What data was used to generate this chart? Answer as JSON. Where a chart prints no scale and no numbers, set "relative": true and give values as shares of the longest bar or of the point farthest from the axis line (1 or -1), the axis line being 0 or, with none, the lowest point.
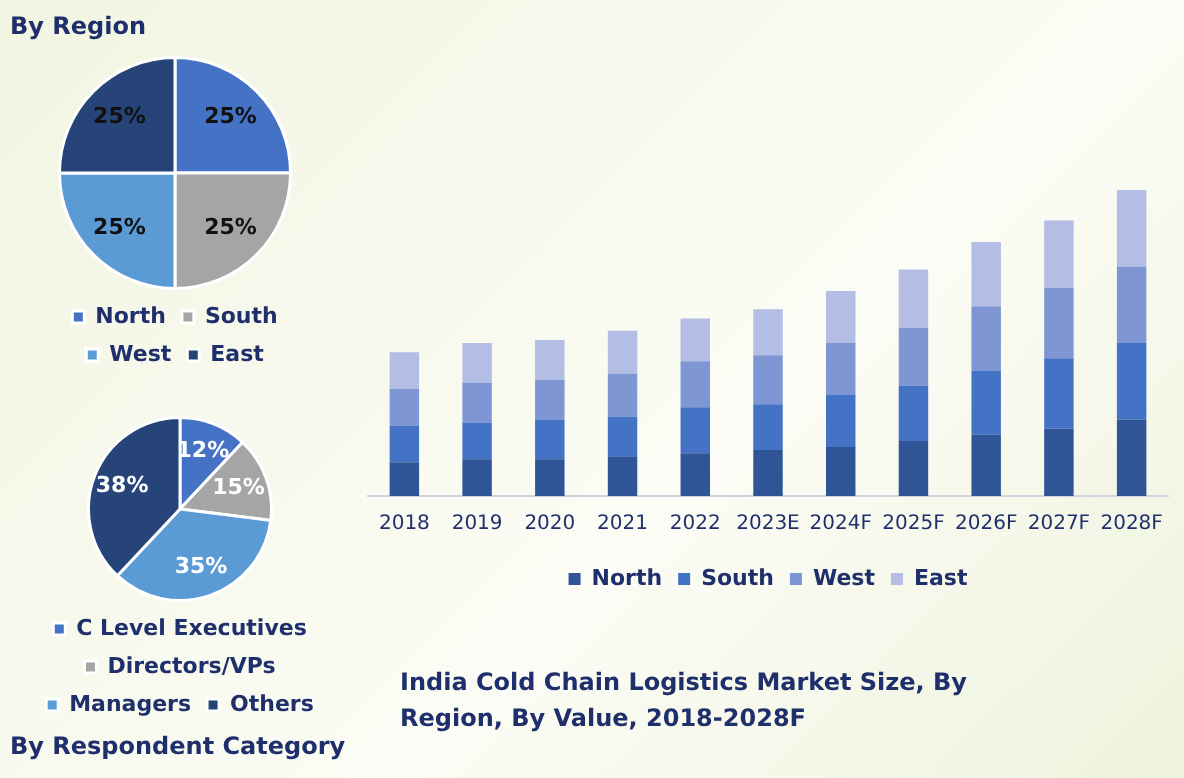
{
  "chart_data": [
    {
      "type": "pie",
      "title": "By Region",
      "categories": [
        "North",
        "South",
        "West",
        "East"
      ],
      "values": [
        25,
        25,
        25,
        25
      ],
      "colors": [
        "#4472c4",
        "#a5a5a5",
        "#5b9bd5",
        "#264478"
      ],
      "value_labels": [
        "25%",
        "25%",
        "25%",
        "25%"
      ],
      "legend": "bottom"
    },
    {
      "type": "pie",
      "title": "By Respondent Category",
      "categories": [
        "C Level Executives",
        "Directors/VPs",
        "Managers",
        "Others"
      ],
      "values": [
        12,
        15,
        35,
        38
      ],
      "colors": [
        "#4472c4",
        "#a5a5a5",
        "#5b9bd5",
        "#264478"
      ],
      "value_labels": [
        "12%",
        "15%",
        "35%",
        "38%"
      ],
      "legend": "bottom"
    },
    {
      "type": "bar",
      "title": "India Cold Chain Logistics Market Size, By Region, By Value, 2018-2028F",
      "categories": [
        "2018",
        "2019",
        "2020",
        "2021",
        "2022",
        "2023E",
        "2024F",
        "2025F",
        "2026F",
        "2027F",
        "2028F"
      ],
      "stacked": true,
      "relative": true,
      "legend": "bottom",
      "grid": false,
      "series": [
        {
          "name": "North",
          "color": "#2f5597",
          "values": [
            0.11,
            0.12,
            0.12,
            0.13,
            0.14,
            0.15,
            0.16,
            0.18,
            0.2,
            0.22,
            0.25
          ]
        },
        {
          "name": "South",
          "color": "#4472c4",
          "values": [
            0.12,
            0.12,
            0.13,
            0.13,
            0.15,
            0.15,
            0.17,
            0.18,
            0.21,
            0.23,
            0.25
          ]
        },
        {
          "name": "West",
          "color": "#7f96d4",
          "values": [
            0.12,
            0.13,
            0.13,
            0.14,
            0.15,
            0.16,
            0.17,
            0.19,
            0.21,
            0.23,
            0.25
          ]
        },
        {
          "name": "East",
          "color": "#b4bde3",
          "values": [
            0.12,
            0.13,
            0.13,
            0.14,
            0.14,
            0.15,
            0.17,
            0.19,
            0.21,
            0.22,
            0.25
          ]
        }
      ]
    }
  ]
}
